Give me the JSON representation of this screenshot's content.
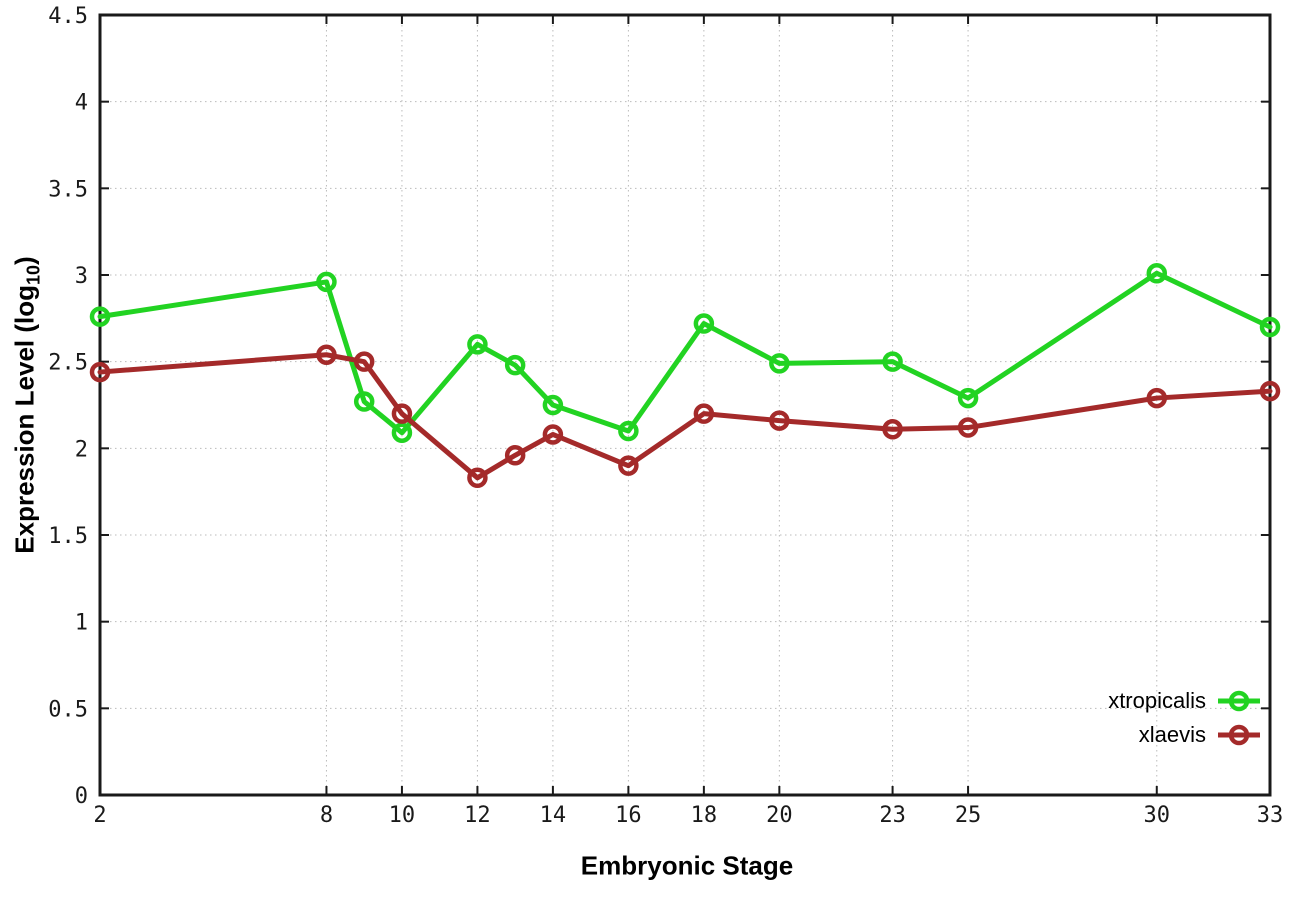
{
  "chart_data": {
    "type": "line",
    "xlabel": "Embryonic Stage",
    "ylabel": "Expression Level (log10)",
    "ylabel_main": "Expression Level (log",
    "ylabel_sub": "10",
    "ylabel_close": ")",
    "x": [
      2,
      8,
      9,
      10,
      12,
      13,
      14,
      16,
      18,
      20,
      23,
      25,
      30,
      33
    ],
    "series": [
      {
        "name": "xtropicalis",
        "color": "#22d322",
        "values": [
          2.76,
          2.96,
          2.27,
          2.09,
          2.6,
          2.48,
          2.25,
          2.1,
          2.72,
          2.49,
          2.5,
          2.29,
          3.01,
          2.7
        ]
      },
      {
        "name": "xlaevis",
        "color": "#a42a2a",
        "values": [
          2.44,
          2.54,
          2.5,
          2.2,
          1.83,
          1.96,
          2.08,
          1.9,
          2.2,
          2.16,
          2.11,
          2.12,
          2.29,
          2.33
        ]
      }
    ],
    "xticks": [
      2,
      8,
      10,
      12,
      14,
      16,
      18,
      20,
      23,
      25,
      30,
      33
    ],
    "ytick_labels": [
      "0",
      "0.5",
      "1",
      "1.5",
      "2",
      "2.5",
      "3",
      "3.5",
      "4",
      "4.5"
    ],
    "ytick_values": [
      0,
      0.5,
      1,
      1.5,
      2,
      2.5,
      3,
      3.5,
      4,
      4.5
    ],
    "xlim": [
      2,
      33
    ],
    "ylim": [
      0,
      4.5
    ],
    "grid": true,
    "legend_position": "bottom-right",
    "axis_color": "#1a1a1a",
    "grid_color": "#bbbbbb",
    "marker": "open-circle"
  }
}
